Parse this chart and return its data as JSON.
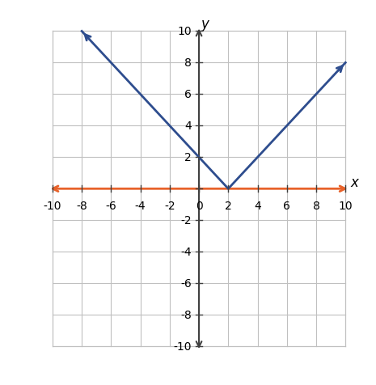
{
  "xlim": [
    -10.5,
    10.8
  ],
  "ylim": [
    -10.5,
    10.8
  ],
  "plot_xlim": [
    -10,
    10
  ],
  "plot_ylim": [
    -10,
    10
  ],
  "xticks": [
    -10,
    -8,
    -6,
    -4,
    -2,
    0,
    2,
    4,
    6,
    8,
    10
  ],
  "yticks": [
    -10,
    -8,
    -6,
    -4,
    -2,
    2,
    4,
    6,
    8,
    10
  ],
  "xlabel": "x",
  "ylabel": "y",
  "abs_color": "#2e4d8e",
  "zero_color": "#e8622a",
  "abs_linewidth": 2.0,
  "zero_linewidth": 2.0,
  "grid_color": "#c0c0c0",
  "axis_color": "#404040",
  "background_color": "#ffffff",
  "figsize": [
    4.65,
    4.77
  ],
  "dpi": 100,
  "vertex_x": 2,
  "vertex_y": 0,
  "tick_fontsize": 10
}
